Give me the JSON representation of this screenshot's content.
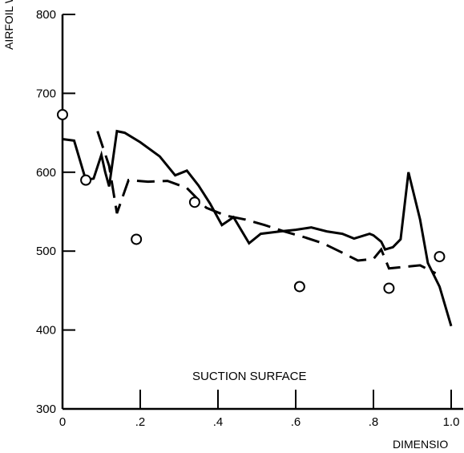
{
  "chart_data": {
    "type": "line",
    "ylabel": "AIRFOIL WALL TE",
    "xlabel": "DIMENSIO",
    "annotation": "SUCTION SURFACE",
    "xlim": [
      0,
      1.0
    ],
    "ylim": [
      300,
      800
    ],
    "x_ticks": [
      0,
      0.2,
      0.4,
      0.6,
      0.8,
      1.0
    ],
    "x_tick_labels": [
      "0",
      ".2",
      ".4",
      ".6",
      ".8",
      "1.0"
    ],
    "y_ticks": [
      300,
      400,
      500,
      600,
      700,
      800
    ],
    "y_tick_labels": [
      "300",
      "400",
      "500",
      "600",
      "700",
      "800"
    ],
    "grid": false,
    "series": [
      {
        "style": "solid",
        "x": [
          0,
          0.03,
          0.06,
          0.08,
          0.1,
          0.11,
          0.12,
          0.14,
          0.16,
          0.2,
          0.25,
          0.29,
          0.32,
          0.35,
          0.38,
          0.41,
          0.44,
          0.48,
          0.51,
          0.56,
          0.6,
          0.64,
          0.68,
          0.72,
          0.75,
          0.79,
          0.8,
          0.82,
          0.83,
          0.85,
          0.87,
          0.89,
          0.92,
          0.94,
          0.97,
          1.0
        ],
        "y": [
          642,
          640,
          590,
          592,
          622,
          600,
          582,
          652,
          650,
          638,
          620,
          596,
          602,
          583,
          560,
          533,
          543,
          510,
          522,
          525,
          527,
          530,
          525,
          522,
          516,
          522,
          520,
          512,
          502,
          505,
          515,
          600,
          540,
          485,
          455,
          405
        ]
      },
      {
        "style": "dashed",
        "x": [
          0.09,
          0.12,
          0.14,
          0.17,
          0.22,
          0.27,
          0.32,
          0.37,
          0.42,
          0.47,
          0.52,
          0.57,
          0.62,
          0.67,
          0.72,
          0.76,
          0.8,
          0.82,
          0.84,
          0.88,
          0.92,
          0.96
        ],
        "y": [
          652,
          608,
          548,
          590,
          588,
          589,
          580,
          555,
          545,
          540,
          533,
          525,
          518,
          510,
          498,
          488,
          490,
          502,
          478,
          480,
          482,
          472
        ]
      },
      {
        "style": "markers",
        "x": [
          0,
          0.06,
          0.19,
          0.34,
          0.61,
          0.84,
          0.97
        ],
        "y": [
          673,
          590,
          515,
          562,
          455,
          453,
          493
        ]
      }
    ]
  }
}
